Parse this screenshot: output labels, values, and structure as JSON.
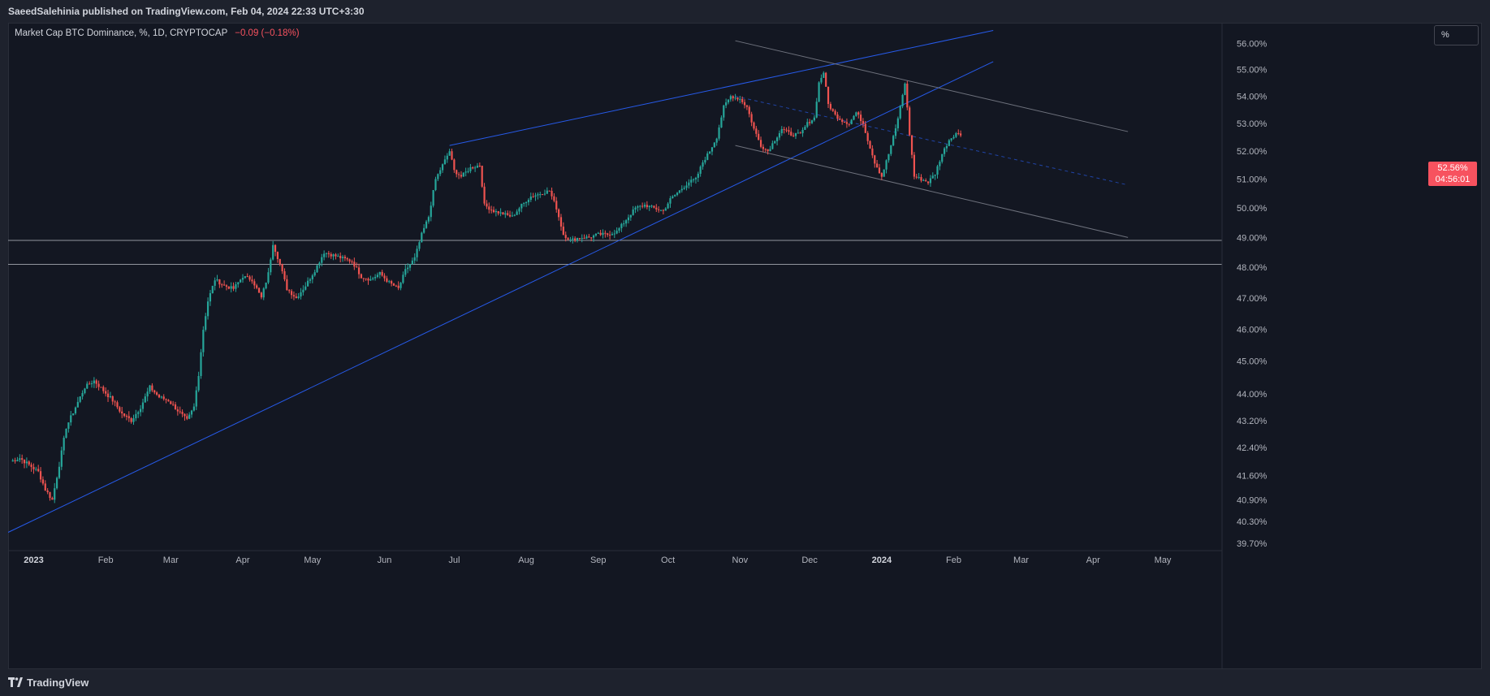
{
  "header": {
    "publisher_line": "SaeedSalehinia published on TradingView.com, Feb 04, 2024 22:33 UTC+3:30"
  },
  "symbol": {
    "description": "Market Cap BTC Dominance, %, 1D, CRYPTOCAP",
    "change": "−0.09 (−0.18%)"
  },
  "scale_button": "%",
  "price_badge": {
    "price": "52.56%",
    "countdown": "04:56:01"
  },
  "footer": {
    "brand": "TradingView"
  },
  "colors": {
    "background": "#131722",
    "up": "#26a69a",
    "down": "#ef5350",
    "trendline": "#2962ff",
    "channel": "#787b86",
    "hline": "#b2b5be"
  },
  "chart_data": {
    "type": "candlestick",
    "title": "Market Cap BTC Dominance, %, 1D, CRYPTOCAP",
    "y_scale": "log",
    "ylim": [
      39.5,
      56.8
    ],
    "y_ticks": [
      "56.00%",
      "55.00%",
      "54.00%",
      "53.00%",
      "52.00%",
      "51.00%",
      "50.00%",
      "49.00%",
      "48.00%",
      "47.00%",
      "46.00%",
      "45.00%",
      "44.00%",
      "43.20%",
      "42.40%",
      "41.60%",
      "40.90%",
      "40.30%",
      "39.70%"
    ],
    "x_ticks": [
      {
        "label": "2023",
        "date": "2023-01-01",
        "year": true
      },
      {
        "label": "Feb",
        "date": "2023-02-01"
      },
      {
        "label": "Mar",
        "date": "2023-03-01"
      },
      {
        "label": "Apr",
        "date": "2023-04-01"
      },
      {
        "label": "May",
        "date": "2023-05-01"
      },
      {
        "label": "Jun",
        "date": "2023-06-01"
      },
      {
        "label": "Jul",
        "date": "2023-07-01"
      },
      {
        "label": "Aug",
        "date": "2023-08-01"
      },
      {
        "label": "Sep",
        "date": "2023-09-01"
      },
      {
        "label": "Oct",
        "date": "2023-10-01"
      },
      {
        "label": "Nov",
        "date": "2023-11-01"
      },
      {
        "label": "Dec",
        "date": "2023-12-01"
      },
      {
        "label": "2024",
        "date": "2024-01-01",
        "year": true
      },
      {
        "label": "Feb",
        "date": "2024-02-01"
      },
      {
        "label": "Mar",
        "date": "2024-03-01"
      },
      {
        "label": "Apr",
        "date": "2024-04-01"
      },
      {
        "label": "May",
        "date": "2024-05-01"
      }
    ],
    "xlim": [
      "2022-12-21",
      "2024-05-23"
    ],
    "close_path": [
      [
        "2022-12-22",
        42.0
      ],
      [
        "2022-12-26",
        42.1
      ],
      [
        "2022-12-30",
        41.9
      ],
      [
        "2023-01-03",
        41.7
      ],
      [
        "2023-01-06",
        41.2
      ],
      [
        "2023-01-09",
        40.9
      ],
      [
        "2023-01-12",
        41.9
      ],
      [
        "2023-01-15",
        43.0
      ],
      [
        "2023-01-19",
        43.6
      ],
      [
        "2023-01-23",
        44.2
      ],
      [
        "2023-01-27",
        44.4
      ],
      [
        "2023-01-31",
        44.1
      ],
      [
        "2023-02-04",
        43.8
      ],
      [
        "2023-02-08",
        43.4
      ],
      [
        "2023-02-12",
        43.2
      ],
      [
        "2023-02-16",
        43.6
      ],
      [
        "2023-02-20",
        44.2
      ],
      [
        "2023-02-24",
        43.9
      ],
      [
        "2023-02-28",
        43.8
      ],
      [
        "2023-03-04",
        43.5
      ],
      [
        "2023-03-08",
        43.2
      ],
      [
        "2023-03-11",
        43.6
      ],
      [
        "2023-03-13",
        44.6
      ],
      [
        "2023-03-15",
        46.0
      ],
      [
        "2023-03-17",
        46.9
      ],
      [
        "2023-03-20",
        47.6
      ],
      [
        "2023-03-24",
        47.4
      ],
      [
        "2023-03-28",
        47.3
      ],
      [
        "2023-04-01",
        47.7
      ],
      [
        "2023-04-05",
        47.6
      ],
      [
        "2023-04-09",
        47.0
      ],
      [
        "2023-04-12",
        47.8
      ],
      [
        "2023-04-14",
        48.8
      ],
      [
        "2023-04-17",
        48.1
      ],
      [
        "2023-04-20",
        47.3
      ],
      [
        "2023-04-24",
        47.0
      ],
      [
        "2023-04-28",
        47.4
      ],
      [
        "2023-05-02",
        47.9
      ],
      [
        "2023-05-06",
        48.5
      ],
      [
        "2023-05-10",
        48.4
      ],
      [
        "2023-05-14",
        48.3
      ],
      [
        "2023-05-18",
        48.2
      ],
      [
        "2023-05-22",
        47.7
      ],
      [
        "2023-05-26",
        47.6
      ],
      [
        "2023-05-30",
        47.8
      ],
      [
        "2023-06-03",
        47.5
      ],
      [
        "2023-06-07",
        47.3
      ],
      [
        "2023-06-10",
        47.9
      ],
      [
        "2023-06-14",
        48.3
      ],
      [
        "2023-06-17",
        49.1
      ],
      [
        "2023-06-20",
        49.7
      ],
      [
        "2023-06-23",
        51.0
      ],
      [
        "2023-06-26",
        51.5
      ],
      [
        "2023-06-29",
        52.0
      ],
      [
        "2023-07-01",
        51.3
      ],
      [
        "2023-07-04",
        51.1
      ],
      [
        "2023-07-08",
        51.4
      ],
      [
        "2023-07-12",
        51.5
      ],
      [
        "2023-07-14",
        50.1
      ],
      [
        "2023-07-18",
        49.9
      ],
      [
        "2023-07-22",
        49.8
      ],
      [
        "2023-07-26",
        49.7
      ],
      [
        "2023-07-30",
        50.1
      ],
      [
        "2023-08-03",
        50.4
      ],
      [
        "2023-08-07",
        50.5
      ],
      [
        "2023-08-11",
        50.6
      ],
      [
        "2023-08-14",
        50.0
      ],
      [
        "2023-08-17",
        49.1
      ],
      [
        "2023-08-20",
        48.9
      ],
      [
        "2023-08-24",
        49.0
      ],
      [
        "2023-08-28",
        49.0
      ],
      [
        "2023-09-01",
        49.1
      ],
      [
        "2023-09-05",
        49.1
      ],
      [
        "2023-09-09",
        49.2
      ],
      [
        "2023-09-13",
        49.6
      ],
      [
        "2023-09-17",
        50.0
      ],
      [
        "2023-09-21",
        50.1
      ],
      [
        "2023-09-25",
        50.0
      ],
      [
        "2023-09-29",
        49.9
      ],
      [
        "2023-10-02",
        50.3
      ],
      [
        "2023-10-06",
        50.6
      ],
      [
        "2023-10-10",
        50.9
      ],
      [
        "2023-10-13",
        51.0
      ],
      [
        "2023-10-16",
        51.6
      ],
      [
        "2023-10-19",
        52.0
      ],
      [
        "2023-10-22",
        52.5
      ],
      [
        "2023-10-25",
        53.6
      ],
      [
        "2023-10-28",
        54.0
      ],
      [
        "2023-11-01",
        53.9
      ],
      [
        "2023-11-04",
        53.6
      ],
      [
        "2023-11-07",
        52.8
      ],
      [
        "2023-11-10",
        52.2
      ],
      [
        "2023-11-13",
        52.0
      ],
      [
        "2023-11-16",
        52.4
      ],
      [
        "2023-11-19",
        52.8
      ],
      [
        "2023-11-23",
        52.6
      ],
      [
        "2023-11-27",
        52.6
      ],
      [
        "2023-11-30",
        53.0
      ],
      [
        "2023-12-03",
        53.2
      ],
      [
        "2023-12-05",
        54.5
      ],
      [
        "2023-12-07",
        54.9
      ],
      [
        "2023-12-09",
        53.7
      ],
      [
        "2023-12-12",
        53.3
      ],
      [
        "2023-12-15",
        53.1
      ],
      [
        "2023-12-18",
        53.0
      ],
      [
        "2023-12-21",
        53.4
      ],
      [
        "2023-12-24",
        53.0
      ],
      [
        "2023-12-26",
        52.4
      ],
      [
        "2023-12-29",
        51.6
      ],
      [
        "2024-01-01",
        51.1
      ],
      [
        "2024-01-04",
        51.9
      ],
      [
        "2024-01-07",
        52.8
      ],
      [
        "2024-01-09",
        53.6
      ],
      [
        "2024-01-11",
        54.5
      ],
      [
        "2024-01-13",
        52.6
      ],
      [
        "2024-01-15",
        51.1
      ],
      [
        "2024-01-18",
        51.0
      ],
      [
        "2024-01-21",
        50.9
      ],
      [
        "2024-01-24",
        51.2
      ],
      [
        "2024-01-27",
        51.9
      ],
      [
        "2024-01-30",
        52.4
      ],
      [
        "2024-02-02",
        52.65
      ],
      [
        "2024-02-04",
        52.56
      ]
    ],
    "horizontal_lines": [
      48.9,
      48.1
    ],
    "lines": [
      {
        "name": "",
        "kind": "ascending-support",
        "color": "#2962ff",
        "from": [
          "2022-12-21",
          40.0
        ],
        "to": [
          "2024-02-18",
          55.3
        ]
      },
      {
        "name": "",
        "kind": "upper-trendline",
        "color": "#2962ff",
        "from": [
          "2023-06-29",
          52.2
        ],
        "to": [
          "2024-02-18",
          56.5
        ]
      },
      {
        "name": "",
        "kind": "channel-top",
        "color": "#787b86",
        "from": [
          "2023-10-30",
          56.1
        ],
        "to": [
          "2024-04-16",
          52.7
        ]
      },
      {
        "name": "",
        "kind": "channel-bottom",
        "color": "#787b86",
        "from": [
          "2023-10-30",
          52.2
        ],
        "to": [
          "2024-04-16",
          49.0
        ]
      },
      {
        "name": "",
        "kind": "channel-mid",
        "color": "#2962ff",
        "dashed": true,
        "from": [
          "2023-10-30",
          54.0
        ],
        "to": [
          "2024-04-16",
          50.8
        ]
      }
    ]
  }
}
